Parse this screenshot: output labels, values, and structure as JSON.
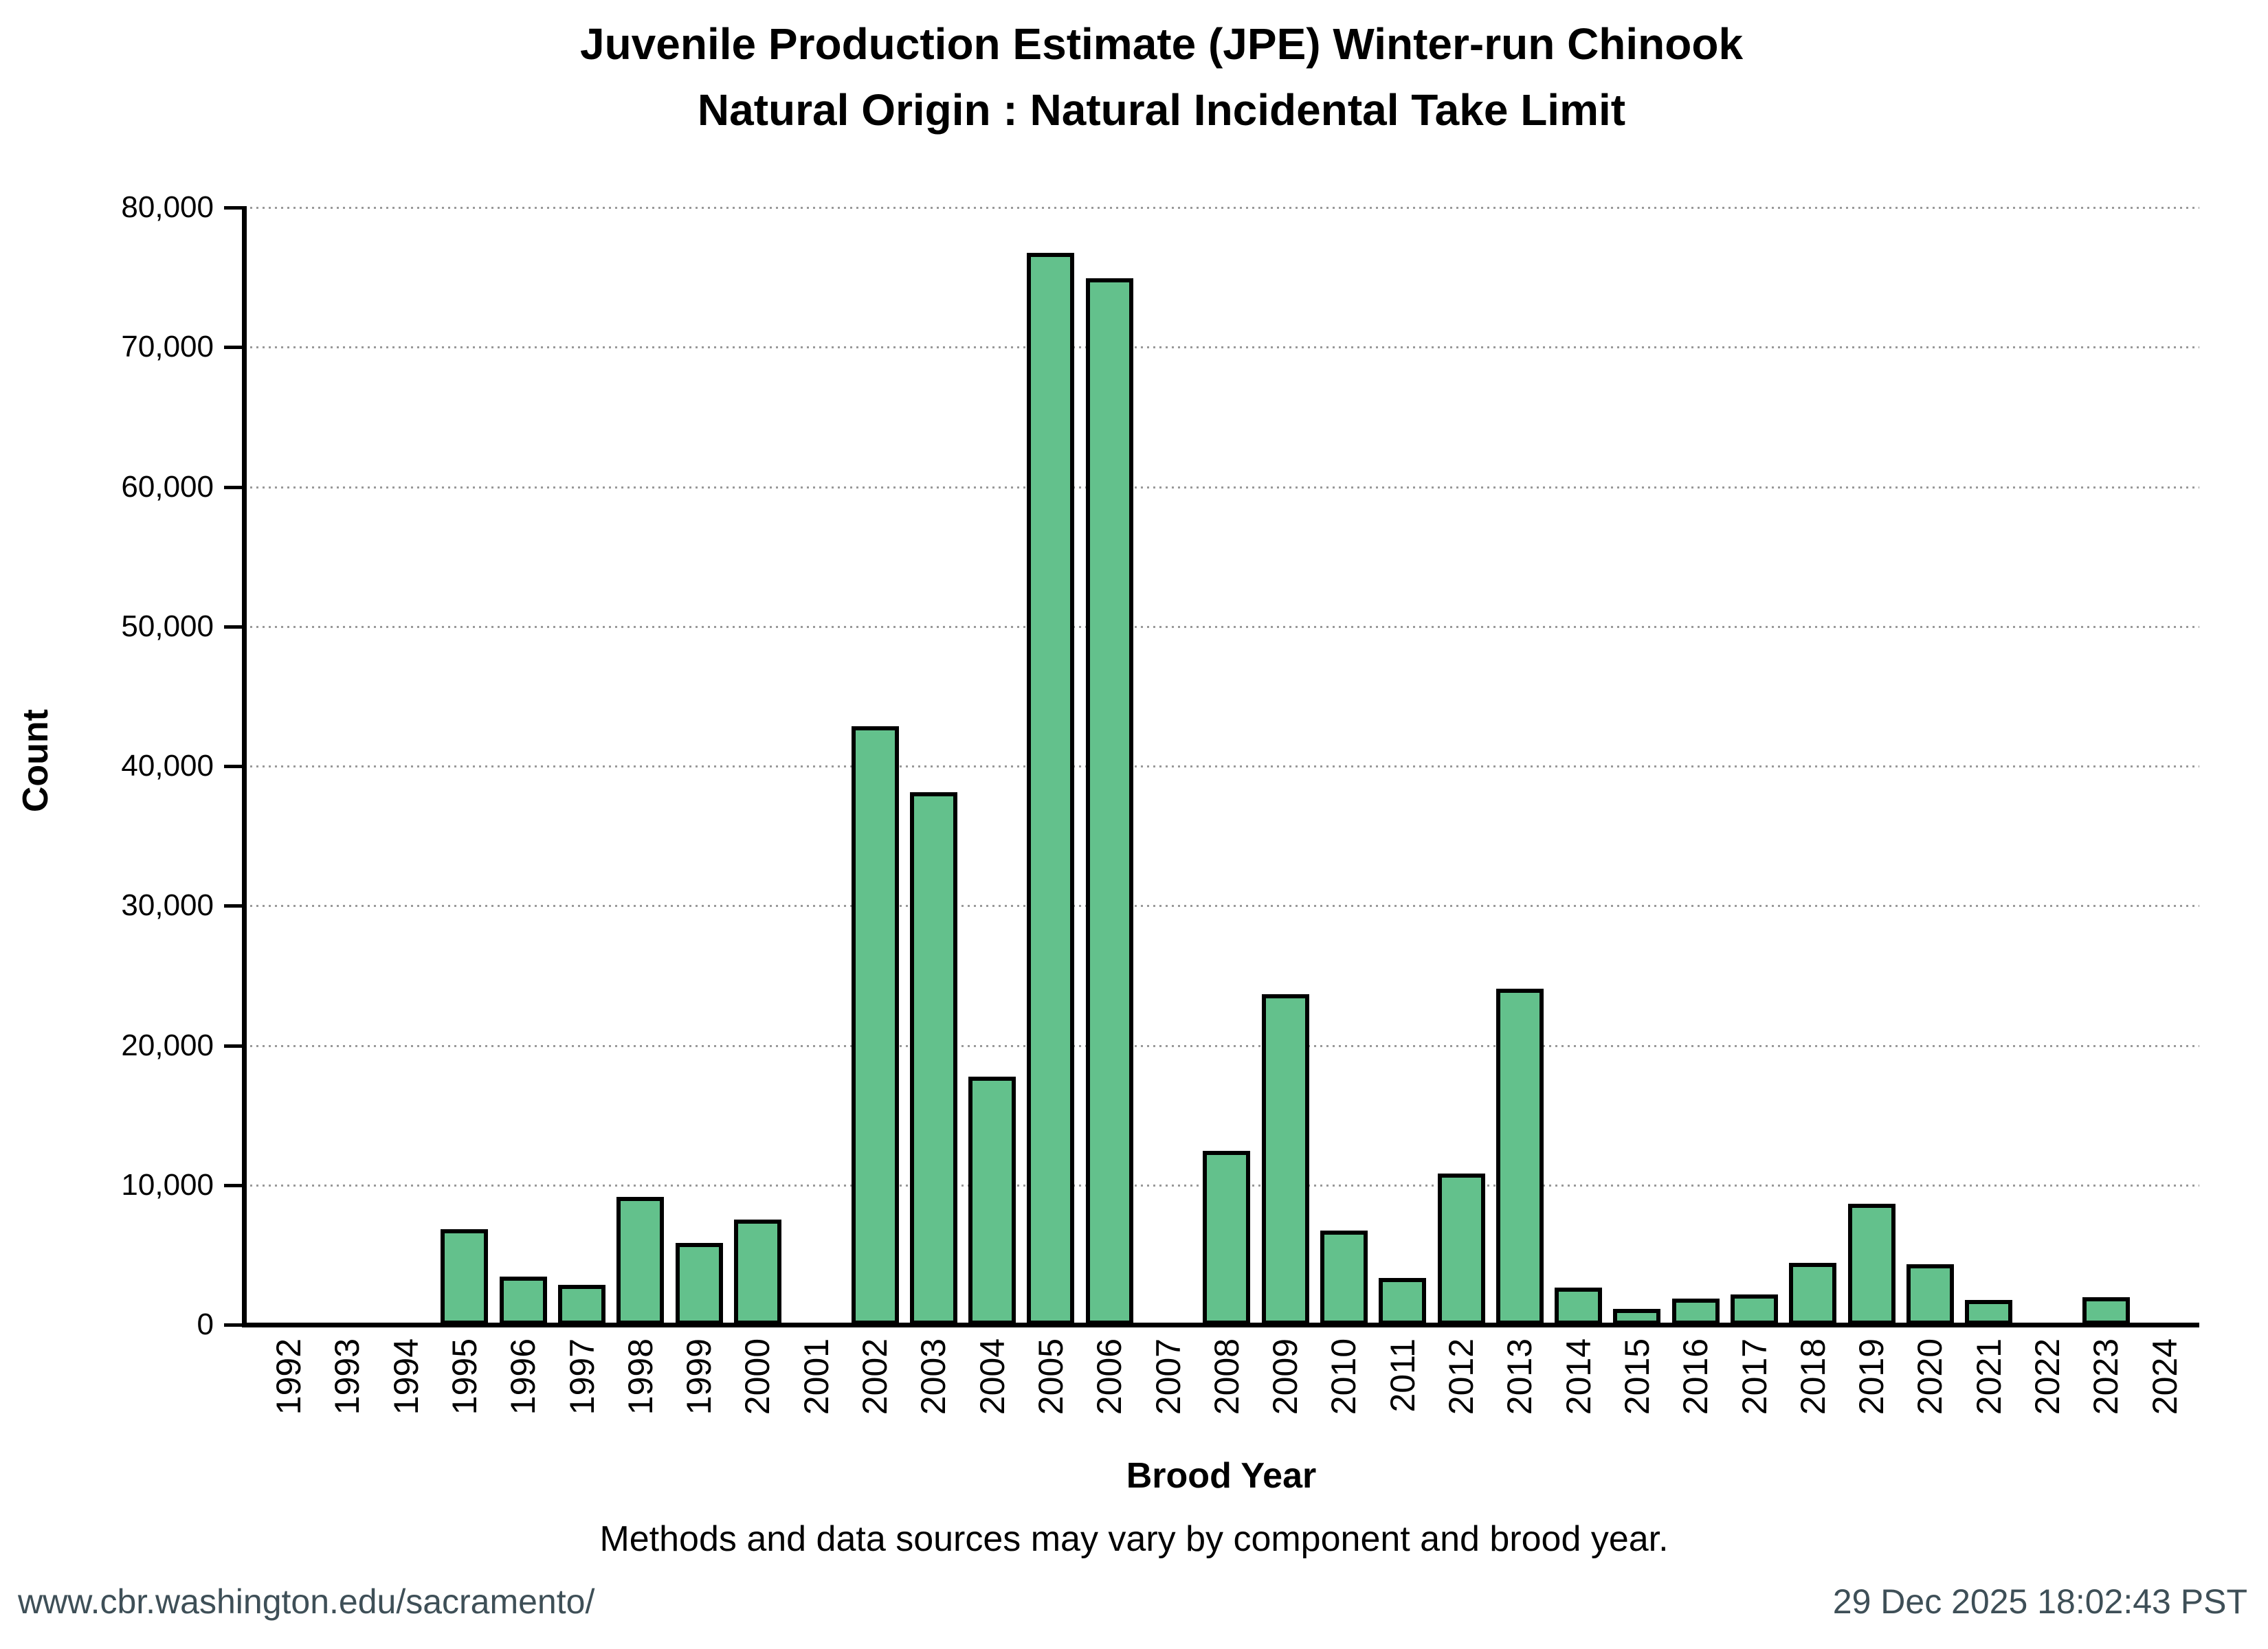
{
  "title": {
    "line1": "Juvenile Production Estimate (JPE) Winter-run Chinook",
    "line2": "Natural Origin : Natural Incidental Take Limit"
  },
  "axes": {
    "y_label": "Count",
    "x_label": "Brood Year",
    "y_tick_labels": [
      "0",
      "10,000",
      "20,000",
      "30,000",
      "40,000",
      "50,000",
      "60,000",
      "70,000",
      "80,000"
    ]
  },
  "chart_data": {
    "type": "bar",
    "title": "Juvenile Production Estimate (JPE) Winter-run Chinook — Natural Origin : Natural Incidental Take Limit",
    "xlabel": "Brood Year",
    "ylabel": "Count",
    "ylim": [
      0,
      80000
    ],
    "y_tick_step": 10000,
    "grid": "horizontal-dotted",
    "legend": "none",
    "categories": [
      1992,
      1993,
      1994,
      1995,
      1996,
      1997,
      1998,
      1999,
      2000,
      2001,
      2002,
      2003,
      2004,
      2005,
      2006,
      2007,
      2008,
      2009,
      2010,
      2011,
      2012,
      2013,
      2014,
      2015,
      2016,
      2017,
      2018,
      2019,
      2020,
      2021,
      2022,
      2023,
      2024
    ],
    "values": [
      null,
      null,
      null,
      6700,
      3300,
      2700,
      9000,
      5700,
      7400,
      null,
      42700,
      38000,
      17600,
      76600,
      74800,
      null,
      12300,
      23500,
      6600,
      3200,
      10700,
      23900,
      2500,
      1000,
      1700,
      2000,
      4300,
      8500,
      4200,
      1600,
      null,
      1800,
      null
    ]
  },
  "footnote": "Methods and data sources may vary by component and brood year.",
  "footer": {
    "url": "www.cbr.washington.edu/sacramento/",
    "timestamp": "29 Dec 2025 18:02:43 PST"
  },
  "colors": {
    "bar_fill": "#63c18c",
    "bar_stroke": "#000000",
    "grid": "#999999",
    "axis": "#000000",
    "footer_text": "#3e4f57"
  }
}
